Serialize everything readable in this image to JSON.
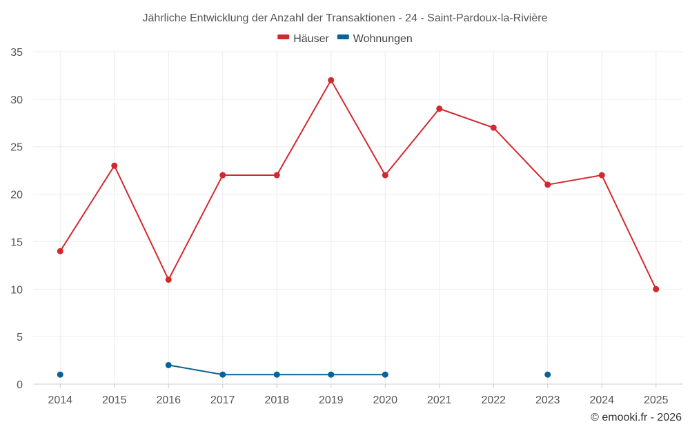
{
  "chart_data": {
    "type": "line",
    "title": "Jährliche Entwicklung der Anzahl der Transaktionen - 24 - Saint-Pardoux-la-Rivière",
    "categories": [
      "2014",
      "2015",
      "2016",
      "2017",
      "2018",
      "2019",
      "2020",
      "2021",
      "2022",
      "2023",
      "2024",
      "2025"
    ],
    "ylim": [
      0,
      35
    ],
    "yticks": [
      0,
      5,
      10,
      15,
      20,
      25,
      30,
      35
    ],
    "grid": true,
    "legend_position": "top-center",
    "series": [
      {
        "name": "Häuser",
        "color": "#d3282d",
        "values": [
          14,
          23,
          11,
          22,
          22,
          32,
          22,
          29,
          27,
          21,
          22,
          10
        ]
      },
      {
        "name": "Wohnungen",
        "color": "#0a6196",
        "values": [
          1,
          null,
          2,
          1,
          1,
          1,
          1,
          null,
          null,
          1,
          null,
          null
        ]
      }
    ]
  },
  "credit": "© emooki.fr - 2026"
}
